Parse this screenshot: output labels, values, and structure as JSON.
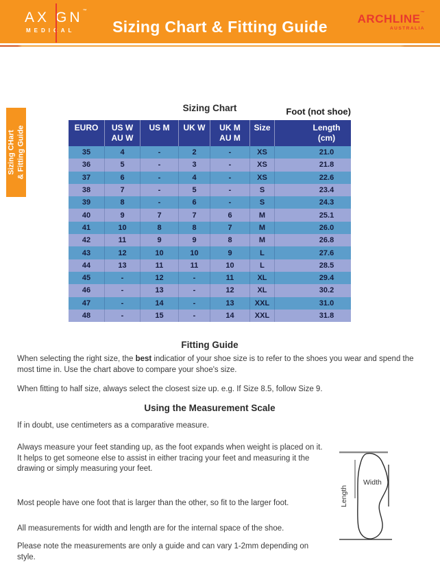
{
  "header": {
    "axign": {
      "part1": "AX",
      "part2": "GN",
      "tm": "™",
      "sub": "MEDICAL"
    },
    "title": "Sizing Chart & Fitting Guide",
    "archline": {
      "name": "ARCHLINE",
      "tm": "™",
      "sub": "AUSTRALIA"
    }
  },
  "side_tab": {
    "line1": "Sizing CHart",
    "line2": "& Fitting Guide"
  },
  "sizing_chart": {
    "heading": "Sizing Chart",
    "foot_label": "Foot (not shoe)",
    "headers": [
      {
        "l1": "EURO",
        "l2": ""
      },
      {
        "l1": "US W",
        "l2": "AU W"
      },
      {
        "l1": "US M",
        "l2": ""
      },
      {
        "l1": "UK W",
        "l2": ""
      },
      {
        "l1": "UK M",
        "l2": "AU M"
      },
      {
        "l1": "Size",
        "l2": ""
      },
      {
        "l1": "Length",
        "l2": "(cm)"
      }
    ],
    "rows": [
      [
        "35",
        "4",
        "-",
        "2",
        "-",
        "XS",
        "21.0"
      ],
      [
        "36",
        "5",
        "-",
        "3",
        "-",
        "XS",
        "21.8"
      ],
      [
        "37",
        "6",
        "-",
        "4",
        "-",
        "XS",
        "22.6"
      ],
      [
        "38",
        "7",
        "-",
        "5",
        "-",
        "S",
        "23.4"
      ],
      [
        "39",
        "8",
        "-",
        "6",
        "-",
        "S",
        "24.3"
      ],
      [
        "40",
        "9",
        "7",
        "7",
        "6",
        "M",
        "25.1"
      ],
      [
        "41",
        "10",
        "8",
        "8",
        "7",
        "M",
        "26.0"
      ],
      [
        "42",
        "11",
        "9",
        "9",
        "8",
        "M",
        "26.8"
      ],
      [
        "43",
        "12",
        "10",
        "10",
        "9",
        "L",
        "27.6"
      ],
      [
        "44",
        "13",
        "11",
        "11",
        "10",
        "L",
        "28.5"
      ],
      [
        "45",
        "-",
        "12",
        "-",
        "11",
        "XL",
        "29.4"
      ],
      [
        "46",
        "-",
        "13",
        "-",
        "12",
        "XL",
        "30.2"
      ],
      [
        "47",
        "-",
        "14",
        "-",
        "13",
        "XXL",
        "31.0"
      ],
      [
        "48",
        "-",
        "15",
        "-",
        "14",
        "XXL",
        "31.8"
      ]
    ]
  },
  "fitting_guide": {
    "heading": "Fitting Guide",
    "p1_before": "When selecting the right size, the ",
    "p1_bold": "best",
    "p1_after": " indicatior of your shoe size is to refer to the shoes you wear and spend the most time in. Use the chart above to compare your shoe's size.",
    "p2": "When fitting to half size, always select the closest size up. e.g. If Size 8.5, follow Size 9."
  },
  "measurement": {
    "heading": "Using the Measurement Scale",
    "p1": "If in doubt, use centimeters as a comparative measure.",
    "p2": "Always measure your feet standing up, as the foot expands when weight is placed on it. It helps to get someone else to assist in either tracing your feet and measuring it the drawing or simply measuring your feet.",
    "p3": "Most people have one foot that is larger than the other, so fit to the larger foot.",
    "p4": "All measurements for width and length are for the internal space of the shoe.",
    "p5": "Please note the measurements are only a guide and can vary 1-2mm depending on style."
  },
  "diagram": {
    "width_label": "Width",
    "length_label": "Length"
  },
  "colors": {
    "orange": "#F6941E",
    "navy": "#2E3E92",
    "row_blue": "#5C9DCB",
    "row_periwinkle": "#9DA7D8",
    "brand_red": "#E8392F",
    "table_text": "#151B3D"
  }
}
